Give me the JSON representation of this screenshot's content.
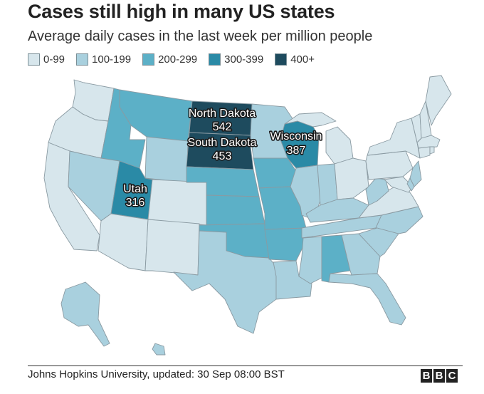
{
  "title": "Cases still high in many US states",
  "subtitle": "Average daily cases in the last week per million people",
  "legend": [
    {
      "label": "0-99",
      "color": "#d7e6ec"
    },
    {
      "label": "100-199",
      "color": "#a9d0de"
    },
    {
      "label": "200-299",
      "color": "#5cb0c7"
    },
    {
      "label": "300-399",
      "color": "#2a8aa6"
    },
    {
      "label": "400+",
      "color": "#1e4b5e"
    }
  ],
  "callouts": {
    "north_dakota": {
      "name": "North Dakota",
      "value": "542"
    },
    "south_dakota": {
      "name": "South Dakota",
      "value": "453"
    },
    "wisconsin": {
      "name": "Wisconsin",
      "value": "387"
    },
    "utah": {
      "name": "Utah",
      "value": "316"
    }
  },
  "source": "Johns Hopkins University, updated: 30 Sep 08:00 BST",
  "logo": [
    "B",
    "B",
    "C"
  ]
}
